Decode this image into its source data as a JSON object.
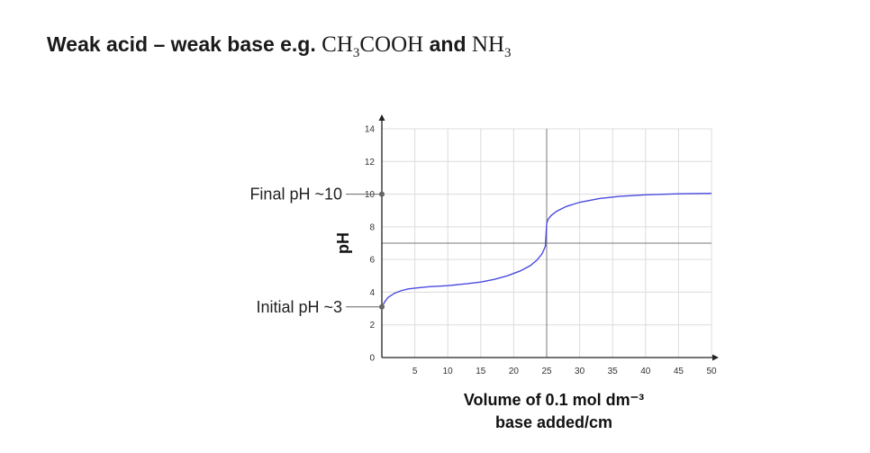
{
  "header": {
    "title_prefix": "Weak acid – weak base e.g. ",
    "acid_formula": {
      "a": "CH",
      "sub1": "3",
      "b": "COOH"
    },
    "connector": " and ",
    "base_formula": {
      "a": "NH",
      "sub1": "3"
    }
  },
  "chart_data": {
    "type": "line",
    "title": "",
    "xlabel": "Volume of 0.1 mol dm⁻³",
    "xlabel_line2": "base added/cm",
    "ylabel": "pH",
    "xlim": [
      0,
      50
    ],
    "ylim": [
      0,
      14
    ],
    "xticks": [
      "5",
      "10",
      "15",
      "20",
      "25",
      "30",
      "35",
      "40",
      "45",
      "50"
    ],
    "yticks": [
      "0",
      "2",
      "4",
      "6",
      "8",
      "10",
      "12",
      "14"
    ],
    "grid": true,
    "series": [
      {
        "name": "",
        "color": "#4a4ae0",
        "x": [
          0,
          0.5,
          1,
          2,
          3,
          4,
          5,
          7,
          10,
          13,
          15,
          17,
          19,
          21,
          22.5,
          23.5,
          24.3,
          24.8,
          25,
          25.2,
          25.7,
          26.5,
          28,
          30,
          33,
          36,
          40,
          45,
          50
        ],
        "y": [
          3.1,
          3.45,
          3.7,
          3.95,
          4.1,
          4.2,
          4.25,
          4.33,
          4.4,
          4.52,
          4.62,
          4.78,
          5.0,
          5.3,
          5.62,
          5.95,
          6.35,
          6.8,
          8.2,
          8.45,
          8.7,
          8.95,
          9.25,
          9.5,
          9.73,
          9.86,
          9.96,
          10.02,
          10.05
        ]
      }
    ],
    "reference_lines": {
      "equivalence_x": 25,
      "neutral_y": 7
    },
    "annotations": [
      {
        "text": "Final pH ~10",
        "y": 10
      },
      {
        "text": "Initial pH ~3",
        "y": 3.1
      }
    ],
    "colors": {
      "curve": "#4a4ae0",
      "grid": "#dcdcdc",
      "reference": "#7a7a7a",
      "axis": "#222222",
      "marker": "#666666"
    }
  }
}
